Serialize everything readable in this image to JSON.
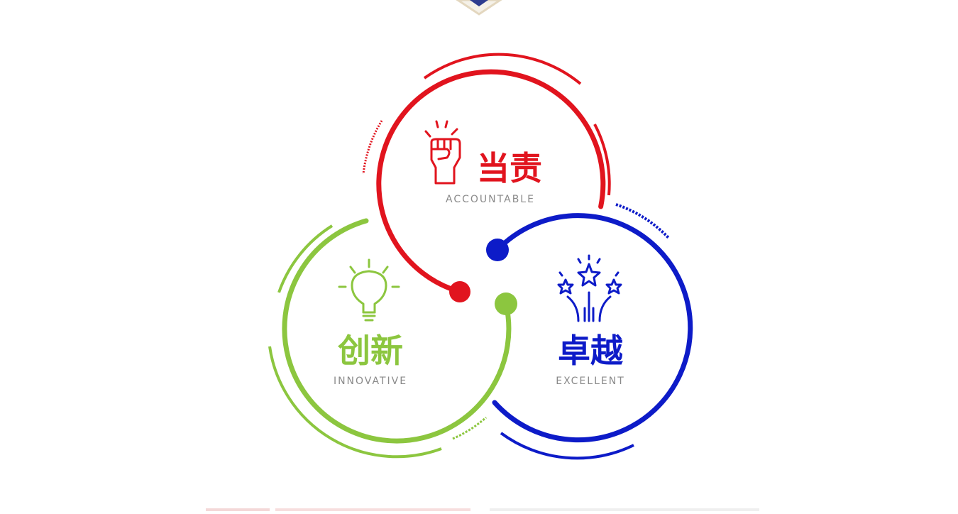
{
  "values": {
    "accountable": {
      "zh": "当责",
      "en": "ACCOUNTABLE",
      "icon": "raised-fist-icon"
    },
    "innovative": {
      "zh": "创新",
      "en": "INNOVATIVE",
      "icon": "lightbulb-icon"
    },
    "excellent": {
      "zh": "卓越",
      "en": "EXCELLENT",
      "icon": "stars-fireworks-icon"
    }
  },
  "colors": {
    "red": "#e1141e",
    "green": "#8cc63f",
    "blue": "#0d1bc8",
    "caption": "#8a8a8a"
  }
}
